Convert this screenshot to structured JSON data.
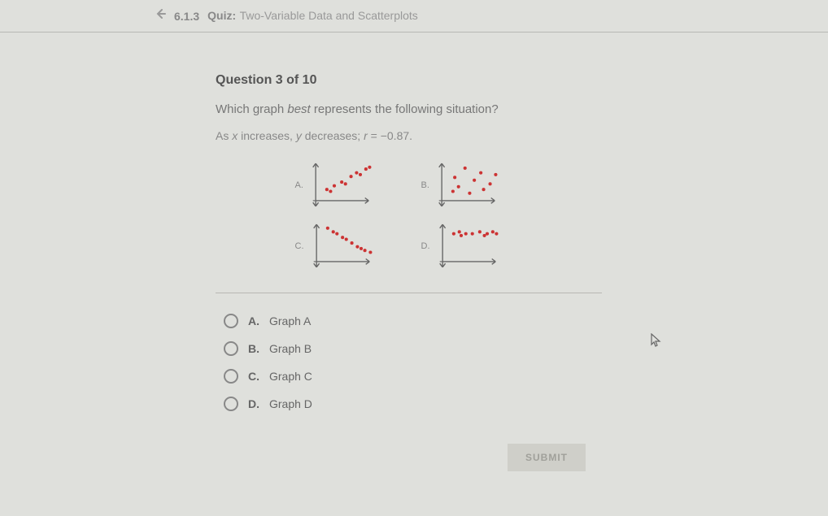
{
  "header": {
    "section_number": "6.1.3",
    "title_label": "Quiz:",
    "title_text": "Two-Variable Data and Scatterplots"
  },
  "question": {
    "number_label": "Question 3 of 10",
    "prompt_before": "Which graph ",
    "prompt_em": "best",
    "prompt_after": " represents the following situation?",
    "desc_prefix": "As ",
    "desc_var1": "x",
    "desc_mid1": " increases, ",
    "desc_var2": "y",
    "desc_mid2": " decreases; ",
    "desc_r": "r",
    "desc_val": " = −0.87."
  },
  "graphs": {
    "axis_color": "#666666",
    "point_color": "#cc3333",
    "point_radius": 1.8,
    "plots": [
      {
        "label": "A.",
        "points": [
          [
            12,
            12
          ],
          [
            16,
            10
          ],
          [
            20,
            16
          ],
          [
            28,
            20
          ],
          [
            32,
            18
          ],
          [
            38,
            26
          ],
          [
            44,
            30
          ],
          [
            48,
            28
          ],
          [
            54,
            34
          ],
          [
            58,
            36
          ]
        ]
      },
      {
        "label": "B.",
        "points": [
          [
            12,
            10
          ],
          [
            14,
            25
          ],
          [
            18,
            15
          ],
          [
            25,
            35
          ],
          [
            30,
            8
          ],
          [
            35,
            22
          ],
          [
            42,
            30
          ],
          [
            45,
            12
          ],
          [
            52,
            18
          ],
          [
            58,
            28
          ]
        ]
      },
      {
        "label": "C.",
        "points": [
          [
            12,
            36
          ],
          [
            18,
            32
          ],
          [
            22,
            30
          ],
          [
            28,
            26
          ],
          [
            32,
            24
          ],
          [
            38,
            20
          ],
          [
            44,
            16
          ],
          [
            48,
            14
          ],
          [
            52,
            12
          ],
          [
            58,
            10
          ]
        ]
      },
      {
        "label": "D.",
        "points": [
          [
            12,
            30
          ],
          [
            18,
            32
          ],
          [
            25,
            30
          ],
          [
            32,
            30
          ],
          [
            40,
            32
          ],
          [
            48,
            30
          ],
          [
            54,
            32
          ],
          [
            58,
            30
          ],
          [
            20,
            28
          ],
          [
            45,
            28
          ]
        ]
      }
    ]
  },
  "options": [
    {
      "letter": "A.",
      "text": "Graph A"
    },
    {
      "letter": "B.",
      "text": "Graph B"
    },
    {
      "letter": "C.",
      "text": "Graph C"
    },
    {
      "letter": "D.",
      "text": "Graph D"
    }
  ],
  "submit_label": "SUBMIT"
}
